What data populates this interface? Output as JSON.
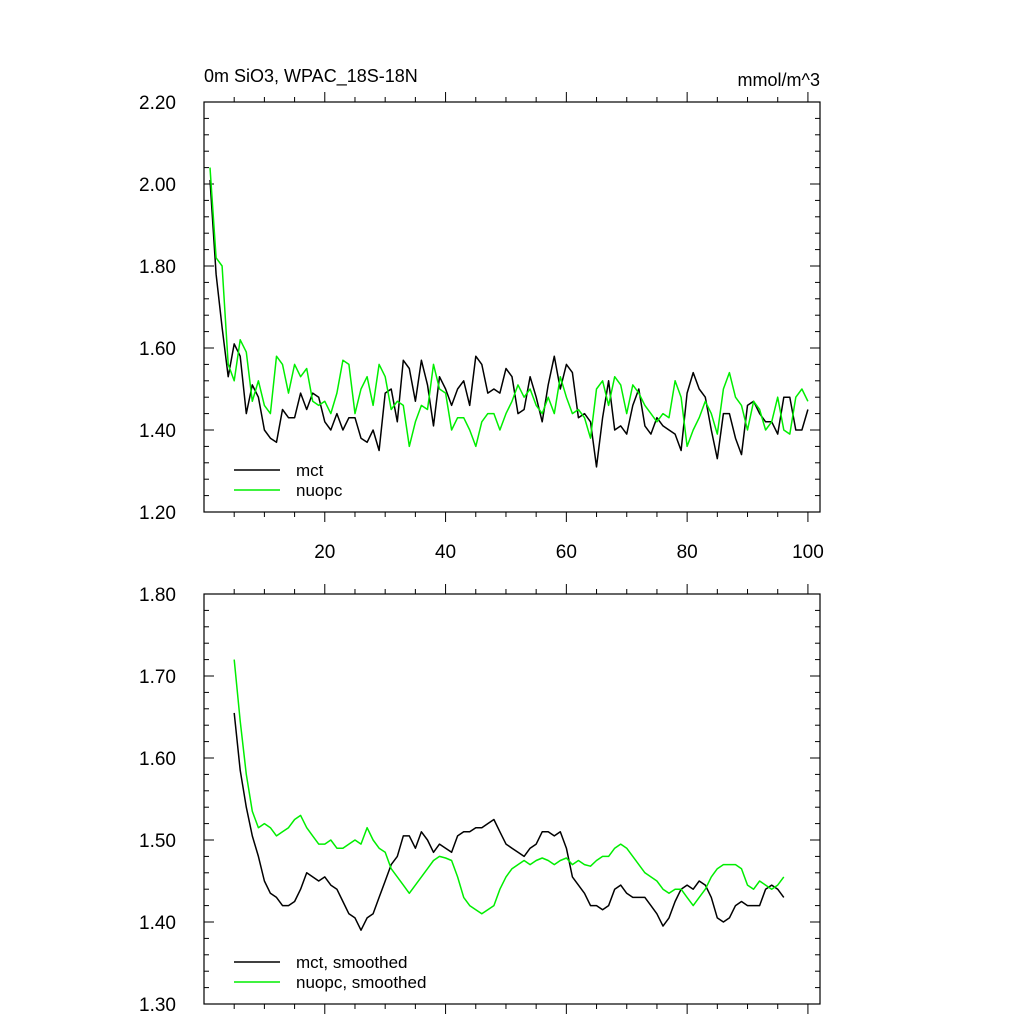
{
  "chart_data": [
    {
      "type": "line",
      "title": "0m SiO3, WPAC_18S-18N",
      "units": "mmol/m^3",
      "ylim": [
        1.2,
        2.2
      ],
      "yticks": [
        "1.20",
        "1.40",
        "1.60",
        "1.80",
        "2.00",
        "2.20"
      ],
      "xlim": [
        0,
        102
      ],
      "xticks": [
        "20",
        "40",
        "60",
        "80",
        "100"
      ],
      "legend_position": "bottom-left",
      "series": [
        {
          "name": "mct",
          "color": "#000000",
          "x": [
            1,
            2,
            3,
            4,
            5,
            6,
            7,
            8,
            9,
            10,
            11,
            12,
            13,
            14,
            15,
            16,
            17,
            18,
            19,
            20,
            21,
            22,
            23,
            24,
            25,
            26,
            27,
            28,
            29,
            30,
            31,
            32,
            33,
            34,
            35,
            36,
            37,
            38,
            39,
            40,
            41,
            42,
            43,
            44,
            45,
            46,
            47,
            48,
            49,
            50,
            51,
            52,
            53,
            54,
            55,
            56,
            57,
            58,
            59,
            60,
            61,
            62,
            63,
            64,
            65,
            66,
            67,
            68,
            69,
            70,
            71,
            72,
            73,
            74,
            75,
            76,
            77,
            78,
            79,
            80,
            81,
            82,
            83,
            84,
            85,
            86,
            87,
            88,
            89,
            90,
            91,
            92,
            93,
            94,
            95,
            96,
            97,
            98,
            99,
            100
          ],
          "values": [
            2.01,
            1.78,
            1.65,
            1.53,
            1.61,
            1.58,
            1.44,
            1.51,
            1.48,
            1.4,
            1.38,
            1.37,
            1.45,
            1.43,
            1.43,
            1.49,
            1.45,
            1.49,
            1.48,
            1.42,
            1.4,
            1.44,
            1.4,
            1.43,
            1.43,
            1.38,
            1.37,
            1.4,
            1.35,
            1.49,
            1.5,
            1.42,
            1.57,
            1.55,
            1.47,
            1.57,
            1.51,
            1.41,
            1.53,
            1.5,
            1.46,
            1.5,
            1.52,
            1.46,
            1.58,
            1.56,
            1.49,
            1.5,
            1.49,
            1.55,
            1.53,
            1.44,
            1.45,
            1.53,
            1.48,
            1.42,
            1.51,
            1.58,
            1.5,
            1.56,
            1.54,
            1.43,
            1.44,
            1.42,
            1.31,
            1.43,
            1.52,
            1.4,
            1.41,
            1.39,
            1.46,
            1.5,
            1.41,
            1.39,
            1.43,
            1.41,
            1.4,
            1.39,
            1.35,
            1.49,
            1.54,
            1.5,
            1.48,
            1.4,
            1.33,
            1.44,
            1.44,
            1.38,
            1.34,
            1.46,
            1.47,
            1.44,
            1.42,
            1.42,
            1.39,
            1.48,
            1.48,
            1.4,
            1.4,
            1.45
          ]
        },
        {
          "name": "nuopc",
          "color": "#00ee00",
          "x": [
            1,
            2,
            3,
            4,
            5,
            6,
            7,
            8,
            9,
            10,
            11,
            12,
            13,
            14,
            15,
            16,
            17,
            18,
            19,
            20,
            21,
            22,
            23,
            24,
            25,
            26,
            27,
            28,
            29,
            30,
            31,
            32,
            33,
            34,
            35,
            36,
            37,
            38,
            39,
            40,
            41,
            42,
            43,
            44,
            45,
            46,
            47,
            48,
            49,
            50,
            51,
            52,
            53,
            54,
            55,
            56,
            57,
            58,
            59,
            60,
            61,
            62,
            63,
            64,
            65,
            66,
            67,
            68,
            69,
            70,
            71,
            72,
            73,
            74,
            75,
            76,
            77,
            78,
            79,
            80,
            81,
            82,
            83,
            84,
            85,
            86,
            87,
            88,
            89,
            90,
            91,
            92,
            93,
            94,
            95,
            96,
            97,
            98,
            99,
            100
          ],
          "values": [
            2.04,
            1.82,
            1.8,
            1.56,
            1.52,
            1.62,
            1.59,
            1.47,
            1.52,
            1.46,
            1.44,
            1.58,
            1.56,
            1.49,
            1.56,
            1.53,
            1.55,
            1.47,
            1.46,
            1.47,
            1.44,
            1.49,
            1.57,
            1.56,
            1.44,
            1.5,
            1.53,
            1.46,
            1.56,
            1.53,
            1.45,
            1.47,
            1.46,
            1.36,
            1.42,
            1.46,
            1.45,
            1.56,
            1.5,
            1.49,
            1.4,
            1.43,
            1.43,
            1.4,
            1.36,
            1.42,
            1.44,
            1.44,
            1.4,
            1.44,
            1.47,
            1.51,
            1.48,
            1.5,
            1.46,
            1.44,
            1.48,
            1.44,
            1.53,
            1.48,
            1.44,
            1.45,
            1.43,
            1.38,
            1.5,
            1.52,
            1.46,
            1.53,
            1.51,
            1.44,
            1.51,
            1.49,
            1.46,
            1.44,
            1.42,
            1.44,
            1.43,
            1.52,
            1.48,
            1.36,
            1.4,
            1.43,
            1.47,
            1.44,
            1.39,
            1.5,
            1.54,
            1.48,
            1.46,
            1.4,
            1.47,
            1.45,
            1.4,
            1.42,
            1.48,
            1.4,
            1.39,
            1.48,
            1.5,
            1.47
          ]
        }
      ]
    },
    {
      "type": "line",
      "title": "",
      "ylim": [
        1.3,
        1.8
      ],
      "yticks": [
        "1.30",
        "1.40",
        "1.50",
        "1.60",
        "1.70",
        "1.80"
      ],
      "xlim": [
        0,
        102
      ],
      "xticks": [],
      "legend_position": "bottom-left",
      "series": [
        {
          "name": "mct, smoothed",
          "color": "#000000",
          "x": [
            5,
            6,
            7,
            8,
            9,
            10,
            11,
            12,
            13,
            14,
            15,
            16,
            17,
            18,
            19,
            20,
            21,
            22,
            23,
            24,
            25,
            26,
            27,
            28,
            29,
            30,
            31,
            32,
            33,
            34,
            35,
            36,
            37,
            38,
            39,
            40,
            41,
            42,
            43,
            44,
            45,
            46,
            47,
            48,
            49,
            50,
            51,
            52,
            53,
            54,
            55,
            56,
            57,
            58,
            59,
            60,
            61,
            62,
            63,
            64,
            65,
            66,
            67,
            68,
            69,
            70,
            71,
            72,
            73,
            74,
            75,
            76,
            77,
            78,
            79,
            80,
            81,
            82,
            83,
            84,
            85,
            86,
            87,
            88,
            89,
            90,
            91,
            92,
            93,
            94,
            95,
            96
          ],
          "values": [
            1.655,
            1.585,
            1.54,
            1.505,
            1.48,
            1.45,
            1.435,
            1.43,
            1.42,
            1.42,
            1.425,
            1.44,
            1.46,
            1.455,
            1.45,
            1.455,
            1.445,
            1.44,
            1.425,
            1.41,
            1.405,
            1.39,
            1.405,
            1.41,
            1.43,
            1.45,
            1.47,
            1.48,
            1.505,
            1.505,
            1.49,
            1.51,
            1.5,
            1.485,
            1.495,
            1.49,
            1.485,
            1.505,
            1.51,
            1.51,
            1.515,
            1.515,
            1.52,
            1.525,
            1.51,
            1.495,
            1.49,
            1.485,
            1.48,
            1.49,
            1.495,
            1.51,
            1.51,
            1.505,
            1.51,
            1.49,
            1.455,
            1.445,
            1.435,
            1.42,
            1.42,
            1.415,
            1.42,
            1.44,
            1.445,
            1.435,
            1.43,
            1.43,
            1.43,
            1.42,
            1.41,
            1.395,
            1.405,
            1.425,
            1.44,
            1.445,
            1.44,
            1.45,
            1.445,
            1.43,
            1.405,
            1.4,
            1.405,
            1.42,
            1.425,
            1.42,
            1.42,
            1.42,
            1.44,
            1.445,
            1.44,
            1.43
          ]
        },
        {
          "name": "nuopc, smoothed",
          "color": "#00ee00",
          "x": [
            5,
            6,
            7,
            8,
            9,
            10,
            11,
            12,
            13,
            14,
            15,
            16,
            17,
            18,
            19,
            20,
            21,
            22,
            23,
            24,
            25,
            26,
            27,
            28,
            29,
            30,
            31,
            32,
            33,
            34,
            35,
            36,
            37,
            38,
            39,
            40,
            41,
            42,
            43,
            44,
            45,
            46,
            47,
            48,
            49,
            50,
            51,
            52,
            53,
            54,
            55,
            56,
            57,
            58,
            59,
            60,
            61,
            62,
            63,
            64,
            65,
            66,
            67,
            68,
            69,
            70,
            71,
            72,
            73,
            74,
            75,
            76,
            77,
            78,
            79,
            80,
            81,
            82,
            83,
            84,
            85,
            86,
            87,
            88,
            89,
            90,
            91,
            92,
            93,
            94,
            95,
            96
          ],
          "values": [
            1.72,
            1.645,
            1.58,
            1.535,
            1.515,
            1.52,
            1.515,
            1.505,
            1.51,
            1.515,
            1.525,
            1.53,
            1.515,
            1.505,
            1.495,
            1.495,
            1.5,
            1.49,
            1.49,
            1.495,
            1.5,
            1.495,
            1.515,
            1.5,
            1.49,
            1.485,
            1.465,
            1.455,
            1.445,
            1.435,
            1.445,
            1.455,
            1.465,
            1.475,
            1.48,
            1.478,
            1.475,
            1.455,
            1.43,
            1.42,
            1.415,
            1.41,
            1.415,
            1.42,
            1.44,
            1.455,
            1.465,
            1.47,
            1.475,
            1.47,
            1.475,
            1.478,
            1.475,
            1.47,
            1.475,
            1.478,
            1.47,
            1.475,
            1.47,
            1.468,
            1.475,
            1.48,
            1.48,
            1.49,
            1.495,
            1.49,
            1.48,
            1.47,
            1.46,
            1.455,
            1.45,
            1.44,
            1.435,
            1.44,
            1.44,
            1.43,
            1.42,
            1.43,
            1.44,
            1.455,
            1.465,
            1.47,
            1.47,
            1.47,
            1.465,
            1.445,
            1.44,
            1.45,
            1.445,
            1.44,
            1.445,
            1.455
          ]
        }
      ]
    }
  ]
}
